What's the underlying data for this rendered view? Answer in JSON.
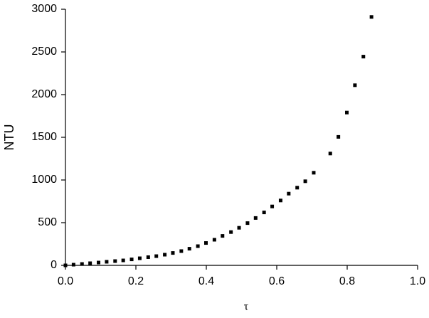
{
  "chart_data": {
    "type": "scatter",
    "xlabel": "τ",
    "ylabel": "NTU",
    "series": [
      {
        "name": "NTU",
        "color": "#000000",
        "x": [
          0,
          0.023,
          0.047,
          0.07,
          0.094,
          0.117,
          0.141,
          0.164,
          0.188,
          0.211,
          0.235,
          0.258,
          0.282,
          0.305,
          0.329,
          0.352,
          0.376,
          0.399,
          0.423,
          0.446,
          0.47,
          0.493,
          0.517,
          0.54,
          0.564,
          0.587,
          0.611,
          0.634,
          0.658,
          0.681,
          0.705,
          0.752,
          0.775,
          0.799,
          0.822,
          0.846,
          0.869
        ],
        "values": [
          0,
          8,
          16,
          25,
          33,
          42,
          50,
          58,
          70,
          83,
          96,
          108,
          125,
          145,
          167,
          195,
          225,
          262,
          300,
          345,
          390,
          440,
          495,
          555,
          620,
          690,
          760,
          840,
          910,
          985,
          1085,
          1310,
          1505,
          1790,
          2110,
          2445,
          2910
        ]
      }
    ],
    "xlim": [
      0,
      1
    ],
    "ylim": [
      0,
      3000
    ],
    "xticks": [
      {
        "value": 0,
        "label": "0.0"
      },
      0.2,
      0.4,
      0.6,
      0.8,
      {
        "value": 1,
        "label": "1.0"
      }
    ],
    "yticks": [
      0,
      500,
      1000,
      1500,
      2000,
      2500,
      3000
    ]
  }
}
